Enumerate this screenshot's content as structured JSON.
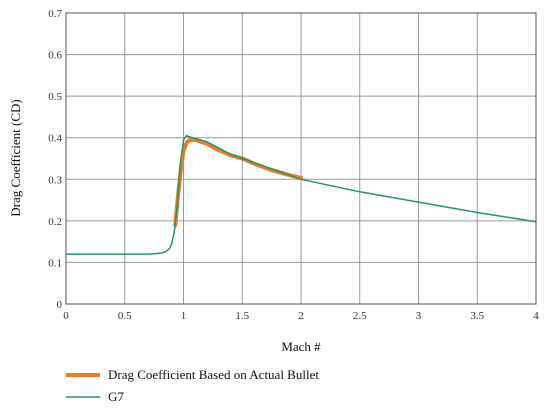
{
  "chart_data": {
    "type": "line",
    "xlabel": "Mach #",
    "ylabel": "Drag Coefficient (CD)",
    "xlim": [
      0,
      4
    ],
    "ylim": [
      0,
      0.7
    ],
    "x_ticks": [
      "0",
      "0.5",
      "1",
      "1.5",
      "2",
      "2.5",
      "3",
      "3.5",
      "4"
    ],
    "y_ticks": [
      "0",
      "0.1",
      "0.2",
      "0.3",
      "0.4",
      "0.5",
      "0.6",
      "0.7"
    ],
    "grid": true,
    "legend_placement": "bottom-left",
    "series": [
      {
        "name": "Drag Coefficient Based on Actual Bullet",
        "color": "#f47a20",
        "x": [
          0.93,
          0.95,
          0.98,
          1.0,
          1.03,
          1.06,
          1.1,
          1.15,
          1.2,
          1.3,
          1.4,
          1.5,
          1.6,
          1.7,
          1.8,
          1.9,
          2.0
        ],
        "y": [
          0.19,
          0.25,
          0.33,
          0.37,
          0.39,
          0.395,
          0.395,
          0.39,
          0.385,
          0.37,
          0.358,
          0.35,
          0.338,
          0.327,
          0.318,
          0.31,
          0.303
        ]
      },
      {
        "name": "G7",
        "color": "#1a9a6c",
        "x": [
          0,
          0.5,
          0.7,
          0.8,
          0.85,
          0.88,
          0.9,
          0.925,
          0.95,
          0.975,
          1.0,
          1.025,
          1.05,
          1.1,
          1.2,
          1.3,
          1.4,
          1.5,
          1.6,
          1.7,
          1.8,
          1.9,
          2.0,
          2.5,
          3.0,
          3.5,
          4.0
        ],
        "y": [
          0.12,
          0.12,
          0.12,
          0.122,
          0.126,
          0.133,
          0.145,
          0.18,
          0.25,
          0.34,
          0.395,
          0.405,
          0.402,
          0.398,
          0.39,
          0.375,
          0.36,
          0.35,
          0.34,
          0.33,
          0.32,
          0.31,
          0.3,
          0.27,
          0.245,
          0.22,
          0.198
        ]
      }
    ]
  }
}
